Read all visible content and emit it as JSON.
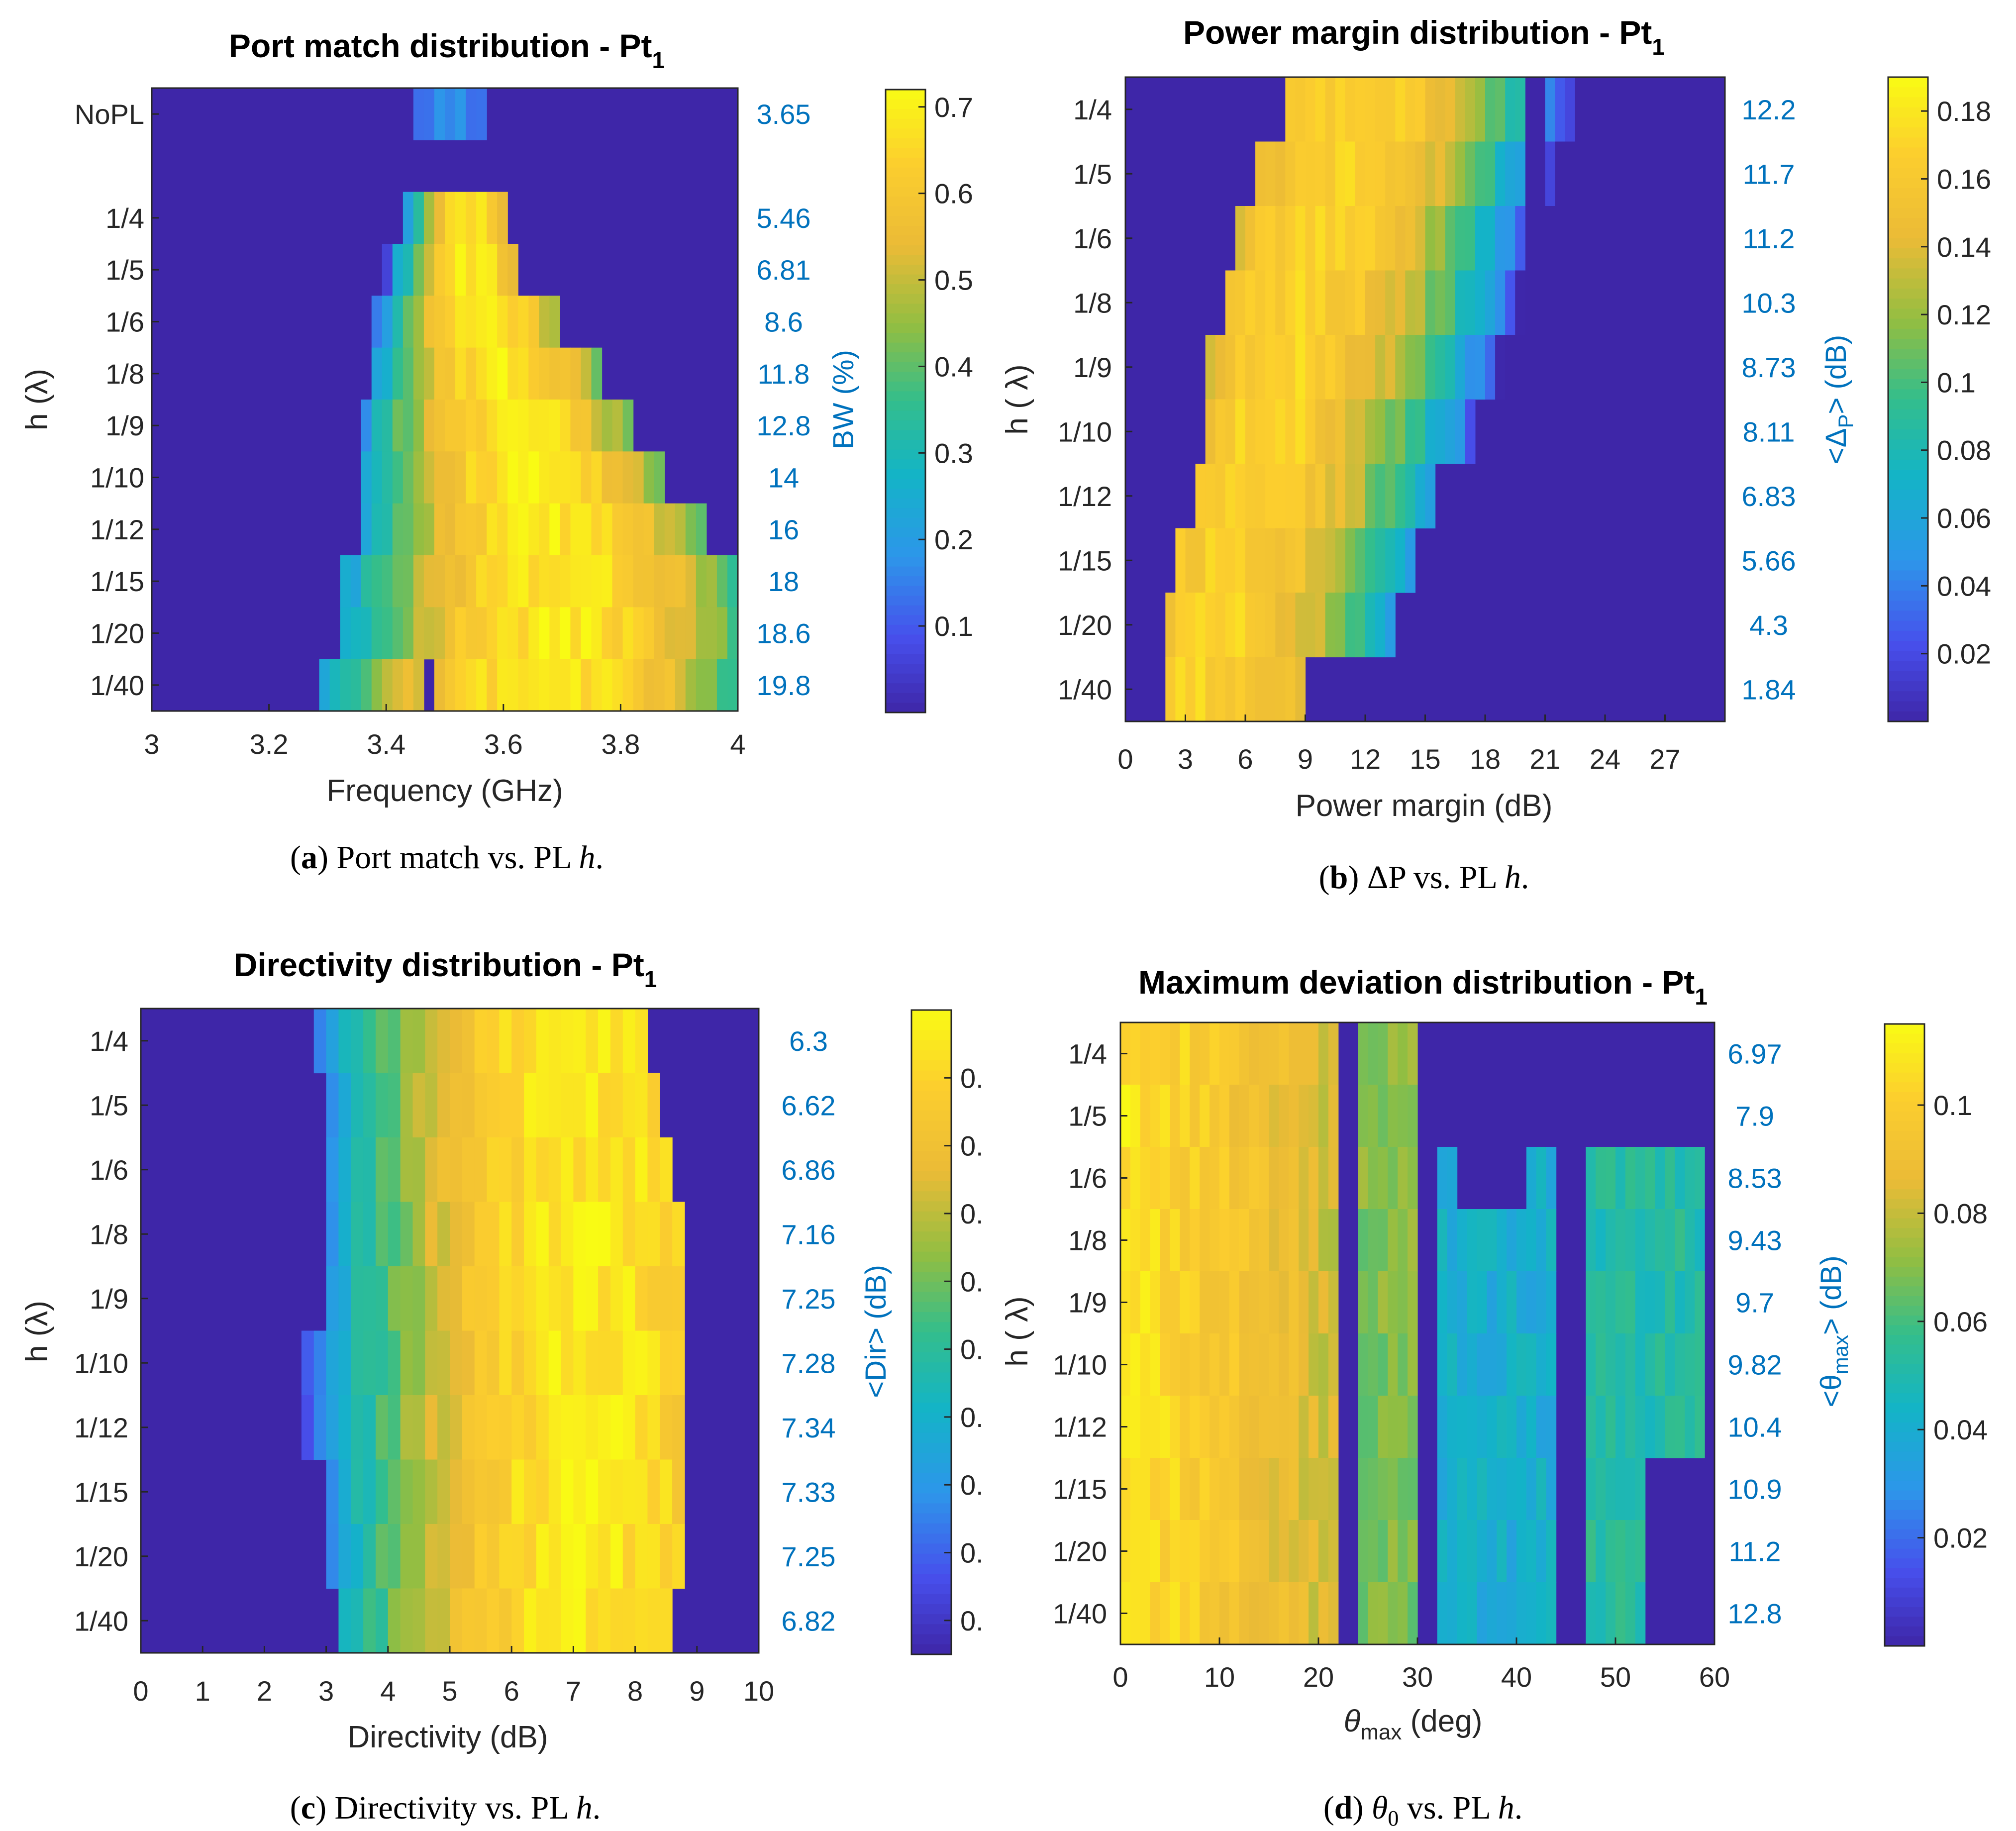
{
  "colors": {
    "right_axis": "#0072BD",
    "axis": "#262626",
    "background": "#3E26A8"
  },
  "colormap": "parula",
  "chart_data": [
    {
      "id": "a",
      "type": "heatmap",
      "title": "Port match distribution - Pt",
      "title_sub": "1",
      "xlabel": "Frequency (GHz)",
      "ylabel": "h (λ)",
      "ylabel_right": "BW (%)",
      "xlim": [
        3,
        4
      ],
      "xticks": [
        "3",
        "3.2",
        "3.4",
        "3.6",
        "3.8",
        "4"
      ],
      "rows": [
        "NoPL",
        "",
        "1/4",
        "1/5",
        "1/6",
        "1/8",
        "1/9",
        "1/10",
        "1/12",
        "1/15",
        "1/20",
        "1/40"
      ],
      "right_values": [
        "3.65",
        "",
        "5.46",
        "6.81",
        "8.6",
        "11.8",
        "12.8",
        "14",
        "16",
        "18",
        "18.6",
        "19.8"
      ],
      "colorbar_ticks": [
        "0.1",
        "0.2",
        "0.3",
        "0.4",
        "0.5",
        "0.6",
        "0.7"
      ],
      "clim": [
        0,
        0.72
      ],
      "caption_letter": "a",
      "caption": " Port match vs. PL ",
      "caption_italic": "h",
      "caption_end": "."
    },
    {
      "id": "b",
      "type": "heatmap",
      "title": "Power margin distribution - Pt",
      "title_sub": "1",
      "xlabel": "Power margin (dB)",
      "ylabel": "h ( λ)",
      "ylabel_right": "<Δ",
      "ylabel_right_sub": "P",
      "ylabel_right_end": "> (dB)",
      "xlim": [
        0,
        30
      ],
      "xticks": [
        "0",
        "3",
        "6",
        "9",
        "12",
        "15",
        "18",
        "21",
        "24",
        "27"
      ],
      "rows": [
        "1/4",
        "1/5",
        "1/6",
        "1/8",
        "1/9",
        "1/10",
        "1/12",
        "1/15",
        "1/20",
        "1/40"
      ],
      "right_values": [
        "12.2",
        "11.7",
        "11.2",
        "10.3",
        "8.73",
        "8.11",
        "6.83",
        "5.66",
        "4.3",
        "1.84"
      ],
      "colorbar_ticks": [
        "0.02",
        "0.04",
        "0.06",
        "0.08",
        "0.1",
        "0.12",
        "0.14",
        "0.16",
        "0.18"
      ],
      "clim": [
        0,
        0.19
      ],
      "caption_letter": "b",
      "caption": " ΔP vs. PL ",
      "caption_italic": "h",
      "caption_end": "."
    },
    {
      "id": "c",
      "type": "heatmap",
      "title": "Directivity distribution - Pt",
      "title_sub": "1",
      "xlabel": "Directivity (dB)",
      "ylabel": "h (λ)",
      "ylabel_right": "<Dir> (dB)",
      "xlim": [
        0,
        10
      ],
      "xticks": [
        "0",
        "1",
        "2",
        "3",
        "4",
        "5",
        "6",
        "7",
        "8",
        "9",
        "10"
      ],
      "rows": [
        "1/4",
        "1/5",
        "1/6",
        "1/8",
        "1/9",
        "1/10",
        "1/12",
        "1/15",
        "1/20",
        "1/40"
      ],
      "right_values": [
        "6.3",
        "6.62",
        "6.86",
        "7.16",
        "7.25",
        "7.28",
        "7.34",
        "7.33",
        "7.25",
        "6.82"
      ],
      "colorbar_ticks": [
        "0.",
        "0.",
        "0.",
        "0.",
        "0.",
        "0.",
        "0.",
        "0.",
        "0."
      ],
      "clim": [
        0,
        1
      ],
      "caption_letter": "c",
      "caption": " Directivity vs. PL ",
      "caption_italic": "h",
      "caption_end": "."
    },
    {
      "id": "d",
      "type": "heatmap",
      "title": "Maximum deviation distribution - Pt",
      "title_sub": "1",
      "xlabel": "θ",
      "xlabel_sub": "max",
      "xlabel_end": " (deg)",
      "ylabel": "h ( λ)",
      "ylabel_right": "<θ",
      "ylabel_right_sub": "max",
      "ylabel_right_end": "> (dB)",
      "xlim": [
        0,
        60
      ],
      "xticks": [
        "0",
        "10",
        "20",
        "30",
        "40",
        "50",
        "60"
      ],
      "rows": [
        "1/4",
        "1/5",
        "1/6",
        "1/8",
        "1/9",
        "1/10",
        "1/12",
        "1/15",
        "1/20",
        "1/40"
      ],
      "right_values": [
        "6.97",
        "7.9",
        "8.53",
        "9.43",
        "9.7",
        "9.82",
        "10.4",
        "10.9",
        "11.2",
        "12.8"
      ],
      "colorbar_ticks": [
        "0.02",
        "0.04",
        "0.06",
        "0.08",
        "0.1"
      ],
      "clim": [
        0,
        0.115
      ],
      "caption_letter": "d",
      "caption": "θ",
      "caption_sub": "0",
      "caption_end2": " vs. PL ",
      "caption_italic": "h",
      "caption_end": "."
    }
  ]
}
